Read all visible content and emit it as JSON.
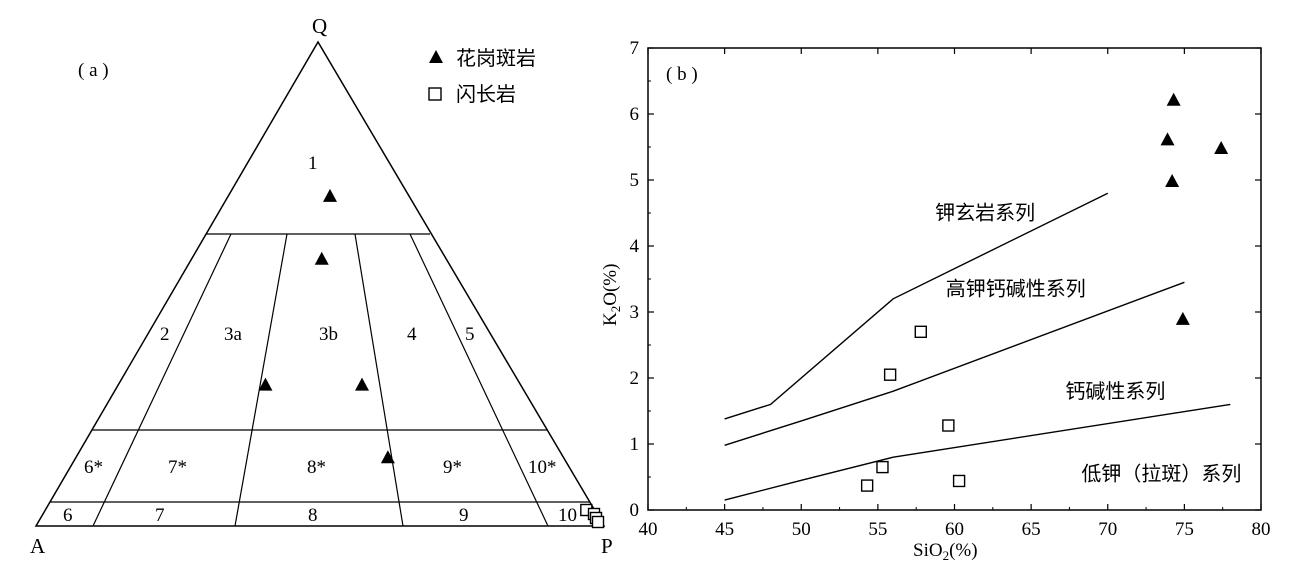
{
  "chart_data": [
    {
      "type": "scatter",
      "panel_label": "( a )",
      "vertices": {
        "top": "Q",
        "left": "A",
        "right": "P"
      },
      "field_labels": [
        "1",
        "2",
        "3a",
        "3b",
        "4",
        "5",
        "6*",
        "7*",
        "8*",
        "9*",
        "10*",
        "6",
        "7",
        "8",
        "9",
        "10"
      ],
      "legend": [
        {
          "marker": "triangle-filled",
          "label": "花岗斑岩"
        },
        {
          "marker": "square-open",
          "label": "闪长岩"
        }
      ],
      "series": [
        {
          "name": "花岗斑岩",
          "marker": "triangle-filled",
          "qap_points": [
            [
              0.14,
              0.31,
              0.55
            ],
            [
              0.29,
              0.45,
              0.26
            ],
            [
              0.29,
              0.28,
              0.43
            ],
            [
              0.55,
              0.22,
              0.23
            ],
            [
              0.68,
              0.14,
              0.18
            ]
          ]
        },
        {
          "name": "闪长岩",
          "marker": "square-open",
          "qap_points": [
            [
              0.0,
              0.01,
              0.99
            ],
            [
              0.0,
              0.0,
              1.0
            ],
            [
              0.0,
              0.0,
              1.0
            ],
            [
              0.0,
              0.0,
              1.0
            ]
          ]
        }
      ]
    },
    {
      "type": "scatter",
      "panel_label": "( b )",
      "xlabel": "SiO2(%)",
      "ylabel": "K2O(%)",
      "xlim": [
        40,
        80
      ],
      "ylim": [
        0,
        7
      ],
      "xticks": [
        40,
        45,
        50,
        55,
        60,
        65,
        70,
        75,
        80
      ],
      "yticks": [
        0,
        1,
        2,
        3,
        4,
        5,
        6,
        7
      ],
      "boundary_lines": [
        {
          "points": [
            [
              45,
              1.38
            ],
            [
              48,
              1.6
            ],
            [
              56,
              3.2
            ],
            [
              70,
              4.8
            ]
          ]
        },
        {
          "points": [
            [
              45,
              0.98
            ],
            [
              50,
              1.35
            ],
            [
              56,
              1.8
            ],
            [
              75,
              3.45
            ]
          ]
        },
        {
          "points": [
            [
              45,
              0.15
            ],
            [
              50,
              0.45
            ],
            [
              56,
              0.8
            ],
            [
              78,
              1.6
            ]
          ]
        }
      ],
      "series_labels": [
        {
          "text": "钾玄岩系列",
          "x": 62.0,
          "y": 4.4
        },
        {
          "text": "高钾钙碱性系列",
          "x": 64.0,
          "y": 3.25
        },
        {
          "text": "钙碱性系列",
          "x": 70.5,
          "y": 1.7
        },
        {
          "text": "低钾（拉斑）系列",
          "x": 73.5,
          "y": 0.45
        }
      ],
      "series": [
        {
          "name": "花岗斑岩",
          "marker": "triangle-filled",
          "points": [
            [
              74.3,
              6.2
            ],
            [
              73.9,
              5.6
            ],
            [
              74.2,
              4.97
            ],
            [
              77.4,
              5.47
            ],
            [
              74.9,
              2.88
            ]
          ]
        },
        {
          "name": "闪长岩",
          "marker": "square-open",
          "points": [
            [
              57.8,
              2.7
            ],
            [
              55.8,
              2.05
            ],
            [
              59.6,
              1.28
            ],
            [
              55.3,
              0.65
            ],
            [
              54.3,
              0.37
            ],
            [
              60.3,
              0.44
            ]
          ]
        }
      ]
    }
  ]
}
